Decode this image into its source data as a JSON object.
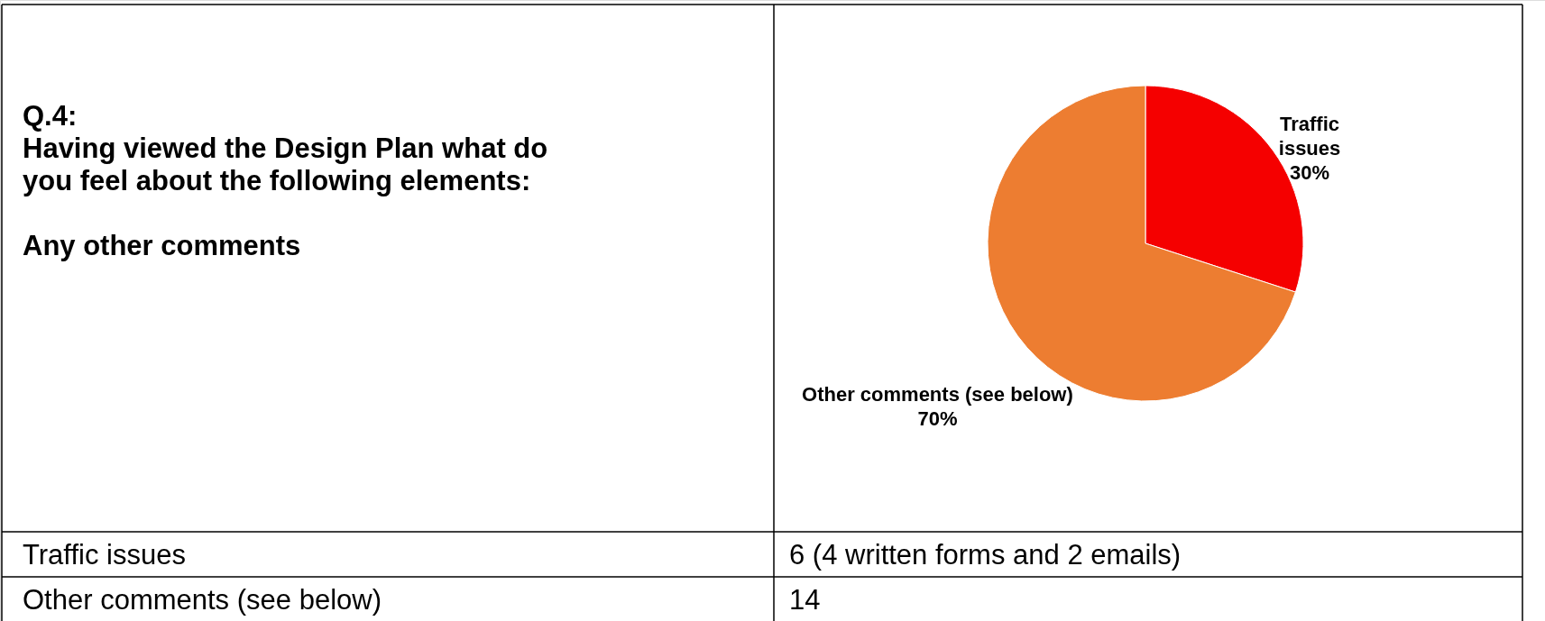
{
  "chart_data": {
    "type": "pie",
    "title": "Q.4:",
    "subtitle": "Having viewed the Design Plan what do you feel about the following elements:",
    "categories": [
      "Traffic issues",
      "Other comments (see below)"
    ],
    "values": [
      30,
      70
    ],
    "colors": [
      "#f50000",
      "#ed7d31"
    ],
    "value_labels": [
      "30%",
      "70%"
    ],
    "annotations": [
      "Any other comments",
      "Traffic issues",
      "6 (4 written forms and 2 emails)",
      "Other comments (see below)",
      "14"
    ]
  }
}
